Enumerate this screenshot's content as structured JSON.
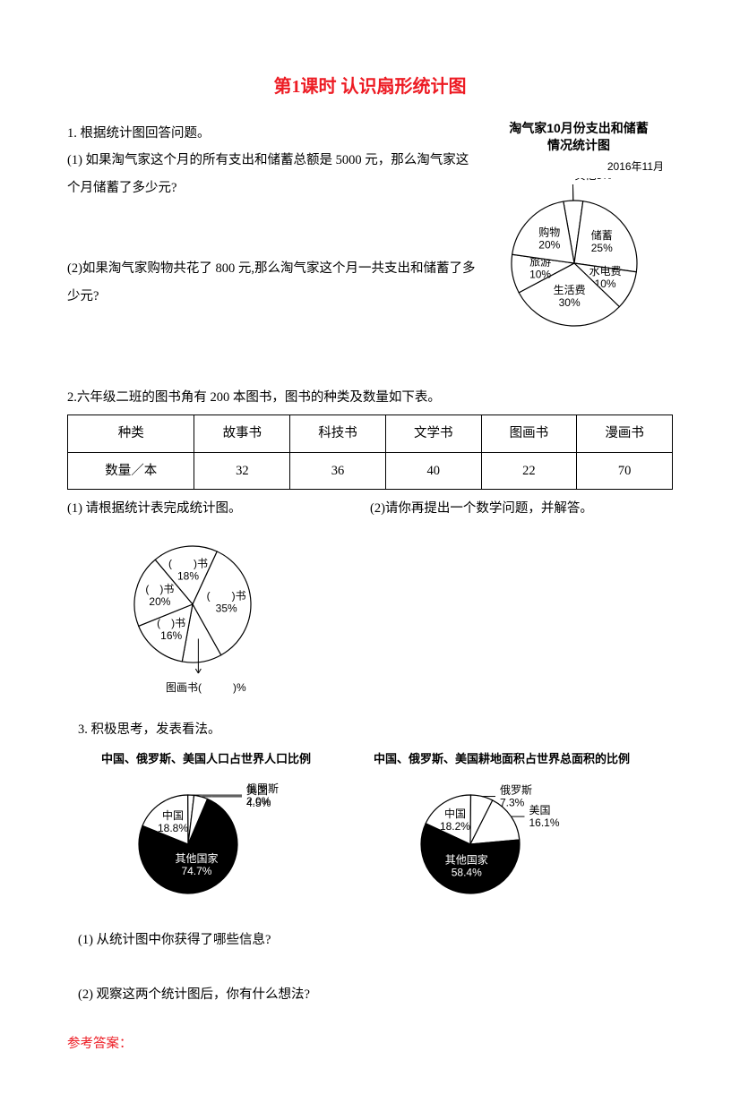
{
  "title": "第1课时  认识扇形统计图",
  "q1": {
    "intro": "1. 根据统计图回答问题。",
    "p1": "(1) 如果淘气家这个月的所有支出和储蓄总额是 5000 元，那么淘气家这个月储蓄了多少元?",
    "p2": "(2)如果淘气家购物共花了 800 元,那么淘气家这个月一共支出和储蓄了多少元?",
    "chart": {
      "title1": "淘气家10月份支出和储蓄",
      "title2": "情况统计图",
      "date": "2016年11月",
      "slices": [
        {
          "label": "其他",
          "pct": "5%",
          "value": 5
        },
        {
          "label": "储蓄",
          "pct": "25%",
          "value": 25
        },
        {
          "label": "水电费",
          "pct": "10%",
          "value": 10
        },
        {
          "label": "生活费",
          "pct": "30%",
          "value": 30
        },
        {
          "label": "旅游",
          "pct": "10%",
          "value": 10
        },
        {
          "label": "购物",
          "pct": "20%",
          "value": 20
        }
      ],
      "stroke": "#000000",
      "bg": "#ffffff"
    }
  },
  "q2": {
    "intro": "2.六年级二班的图书角有 200 本图书，图书的种类及数量如下表。",
    "headers": [
      "种类",
      "故事书",
      "科技书",
      "文学书",
      "图画书",
      "漫画书"
    ],
    "row2": [
      "数量／本",
      "32",
      "36",
      "40",
      "22",
      "70"
    ],
    "sub1": "(1) 请根据统计表完成统计图。",
    "sub2": "(2)请你再提出一个数学问题，并解答。",
    "chart": {
      "slices": [
        {
          "label": "(　　)书",
          "pct": "18%",
          "value": 18
        },
        {
          "label": "(　　)书",
          "pct": "35%",
          "value": 35
        },
        {
          "label": "(　)%",
          "value": 11,
          "is_callout": true,
          "callout_label": "图画书"
        },
        {
          "label": "(　)书",
          "pct": "16%",
          "value": 16
        },
        {
          "label": "(　)书",
          "pct": "20%",
          "value": 20
        }
      ]
    }
  },
  "q3": {
    "intro": "3.  积极思考，发表看法。",
    "chartA": {
      "title": "中国、俄罗斯、美国人口占世界人口比例",
      "slices": [
        {
          "label": "俄罗斯",
          "pct": "2.0%",
          "value": 2.0
        },
        {
          "label": "美国",
          "pct": "4.5%",
          "value": 4.5
        },
        {
          "label": "其他国家",
          "pct": "74.7%",
          "value": 74.7,
          "fill": "#000000"
        },
        {
          "label": "中国",
          "pct": "18.8%",
          "value": 18.8
        }
      ]
    },
    "chartB": {
      "title": "中国、俄罗斯、美国耕地面积占世界总面积的比例",
      "slices": [
        {
          "label": "中国",
          "pct": "18.2%",
          "value": 18.2
        },
        {
          "label": "俄罗斯",
          "pct": "7.3%",
          "value": 7.3
        },
        {
          "label": "美国",
          "pct": "16.1%",
          "value": 16.1
        },
        {
          "label": "其他国家",
          "pct": "58.4%",
          "value": 58.4,
          "fill": "#000000"
        }
      ]
    },
    "p1": "(1) 从统计图中你获得了哪些信息?",
    "p2": "(2) 观察这两个统计图后，你有什么想法?"
  },
  "answers": "参考答案："
}
